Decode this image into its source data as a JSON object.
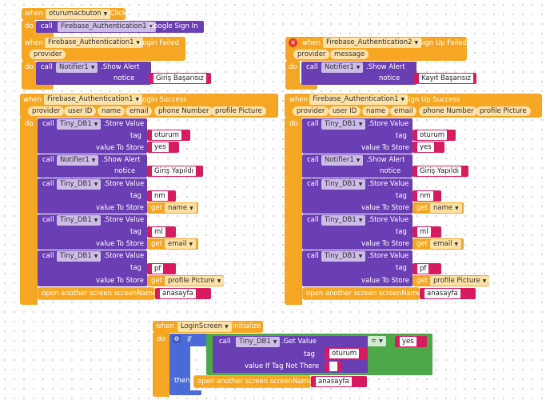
{
  "kw": {
    "when": "when",
    "do": "do",
    "call": "call",
    "if": "if",
    "then": "then",
    "get": "get",
    "dot": "."
  },
  "b1": {
    "comp": "oturumacbuton",
    "ev": ".Click",
    "call_comp": "Firebase_Authentication1",
    "method": ".Google Sign In"
  },
  "b2": {
    "comp": "Firebase_Authentication1",
    "ev": ".Login Failed",
    "param": "provider",
    "call_comp": "Notifier1",
    "method": ".Show Alert",
    "arg": "notice",
    "val": "Giriş Başarısız"
  },
  "b3": {
    "comp": "Firebase_Authentication2",
    "ev": ".Sign Up Failed",
    "params": [
      "provider",
      "message"
    ],
    "call_comp": "Notifier1",
    "method": ".Show Alert",
    "arg": "notice",
    "val": "Kayıt Başarısız"
  },
  "success": {
    "b4": {
      "comp": "Firebase_Authentication1",
      "ev": ".Login Success"
    },
    "b5": {
      "comp": "Firebase_Authentication1",
      "ev": ".Sign Up Success"
    },
    "params": [
      "provider",
      "user ID",
      "name",
      "email",
      "phone Number",
      "profile Picture"
    ],
    "db": "Tiny_DB1",
    "store": ".Store Value",
    "tag_label": "tag",
    "vts_label": "value To Store",
    "s1_tag": "oturum",
    "s1_val": "yes",
    "alert_comp": "Notifier1",
    "alert_method": ".Show Alert",
    "alert_arg": "notice",
    "alert_val": "Giriş Yapıldı",
    "s2_tag": "nm",
    "s2_get": "name",
    "s3_tag": "ml",
    "s3_get": "email",
    "s4_tag": "pf",
    "s4_get": "profile Picture",
    "open_label": "open another screen  screenName",
    "screen": "anasayfa"
  },
  "b6": {
    "comp": "LoginScreen",
    "ev": ".Initialize",
    "call_comp": "Tiny_DB1",
    "method": ".Get Value",
    "tag_label": "tag",
    "tag_val": "oturum",
    "vitnt_label": "value If Tag Not There",
    "vitnt_val": "",
    "op": "=",
    "cmp_val": "yes",
    "open_label": "open another screen  screenName",
    "screen": "anasayfa"
  },
  "colors": {
    "event": "#f5a623",
    "procedure": "#6b3fb4",
    "logic": "#4da84a",
    "text": "#d81b60",
    "error": "#e53935"
  }
}
